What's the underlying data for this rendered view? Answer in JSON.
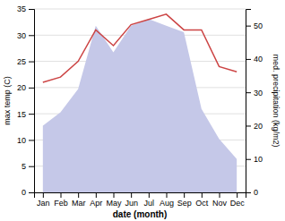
{
  "chart_data": {
    "type": "line",
    "xlabel": "date (month)",
    "ylabel": "max temp (C)",
    "y2label": "med. precipitation (kg/m2)",
    "categories": [
      "Jan",
      "Feb",
      "Mar",
      "Apr",
      "May",
      "Jun",
      "Jul",
      "Aug",
      "Sep",
      "Oct",
      "Nov",
      "Dec"
    ],
    "series": [
      {
        "type": "area",
        "axis": "y2",
        "color": "#c5c8e8",
        "values": [
          20,
          24,
          31,
          50,
          42,
          50,
          52,
          50,
          48,
          25,
          16,
          10
        ]
      },
      {
        "type": "line",
        "color": "#cc4444",
        "values": [
          21,
          22,
          25,
          31,
          28,
          32,
          33,
          34,
          31,
          31,
          24,
          23
        ]
      }
    ],
    "ylim": [
      0,
      35
    ],
    "yticks": [
      0,
      5,
      10,
      15,
      20,
      25,
      30,
      35
    ],
    "y2lim": [
      0,
      55
    ],
    "y2ticks": [
      0,
      10,
      20,
      30,
      40,
      50
    ],
    "grid": true
  }
}
